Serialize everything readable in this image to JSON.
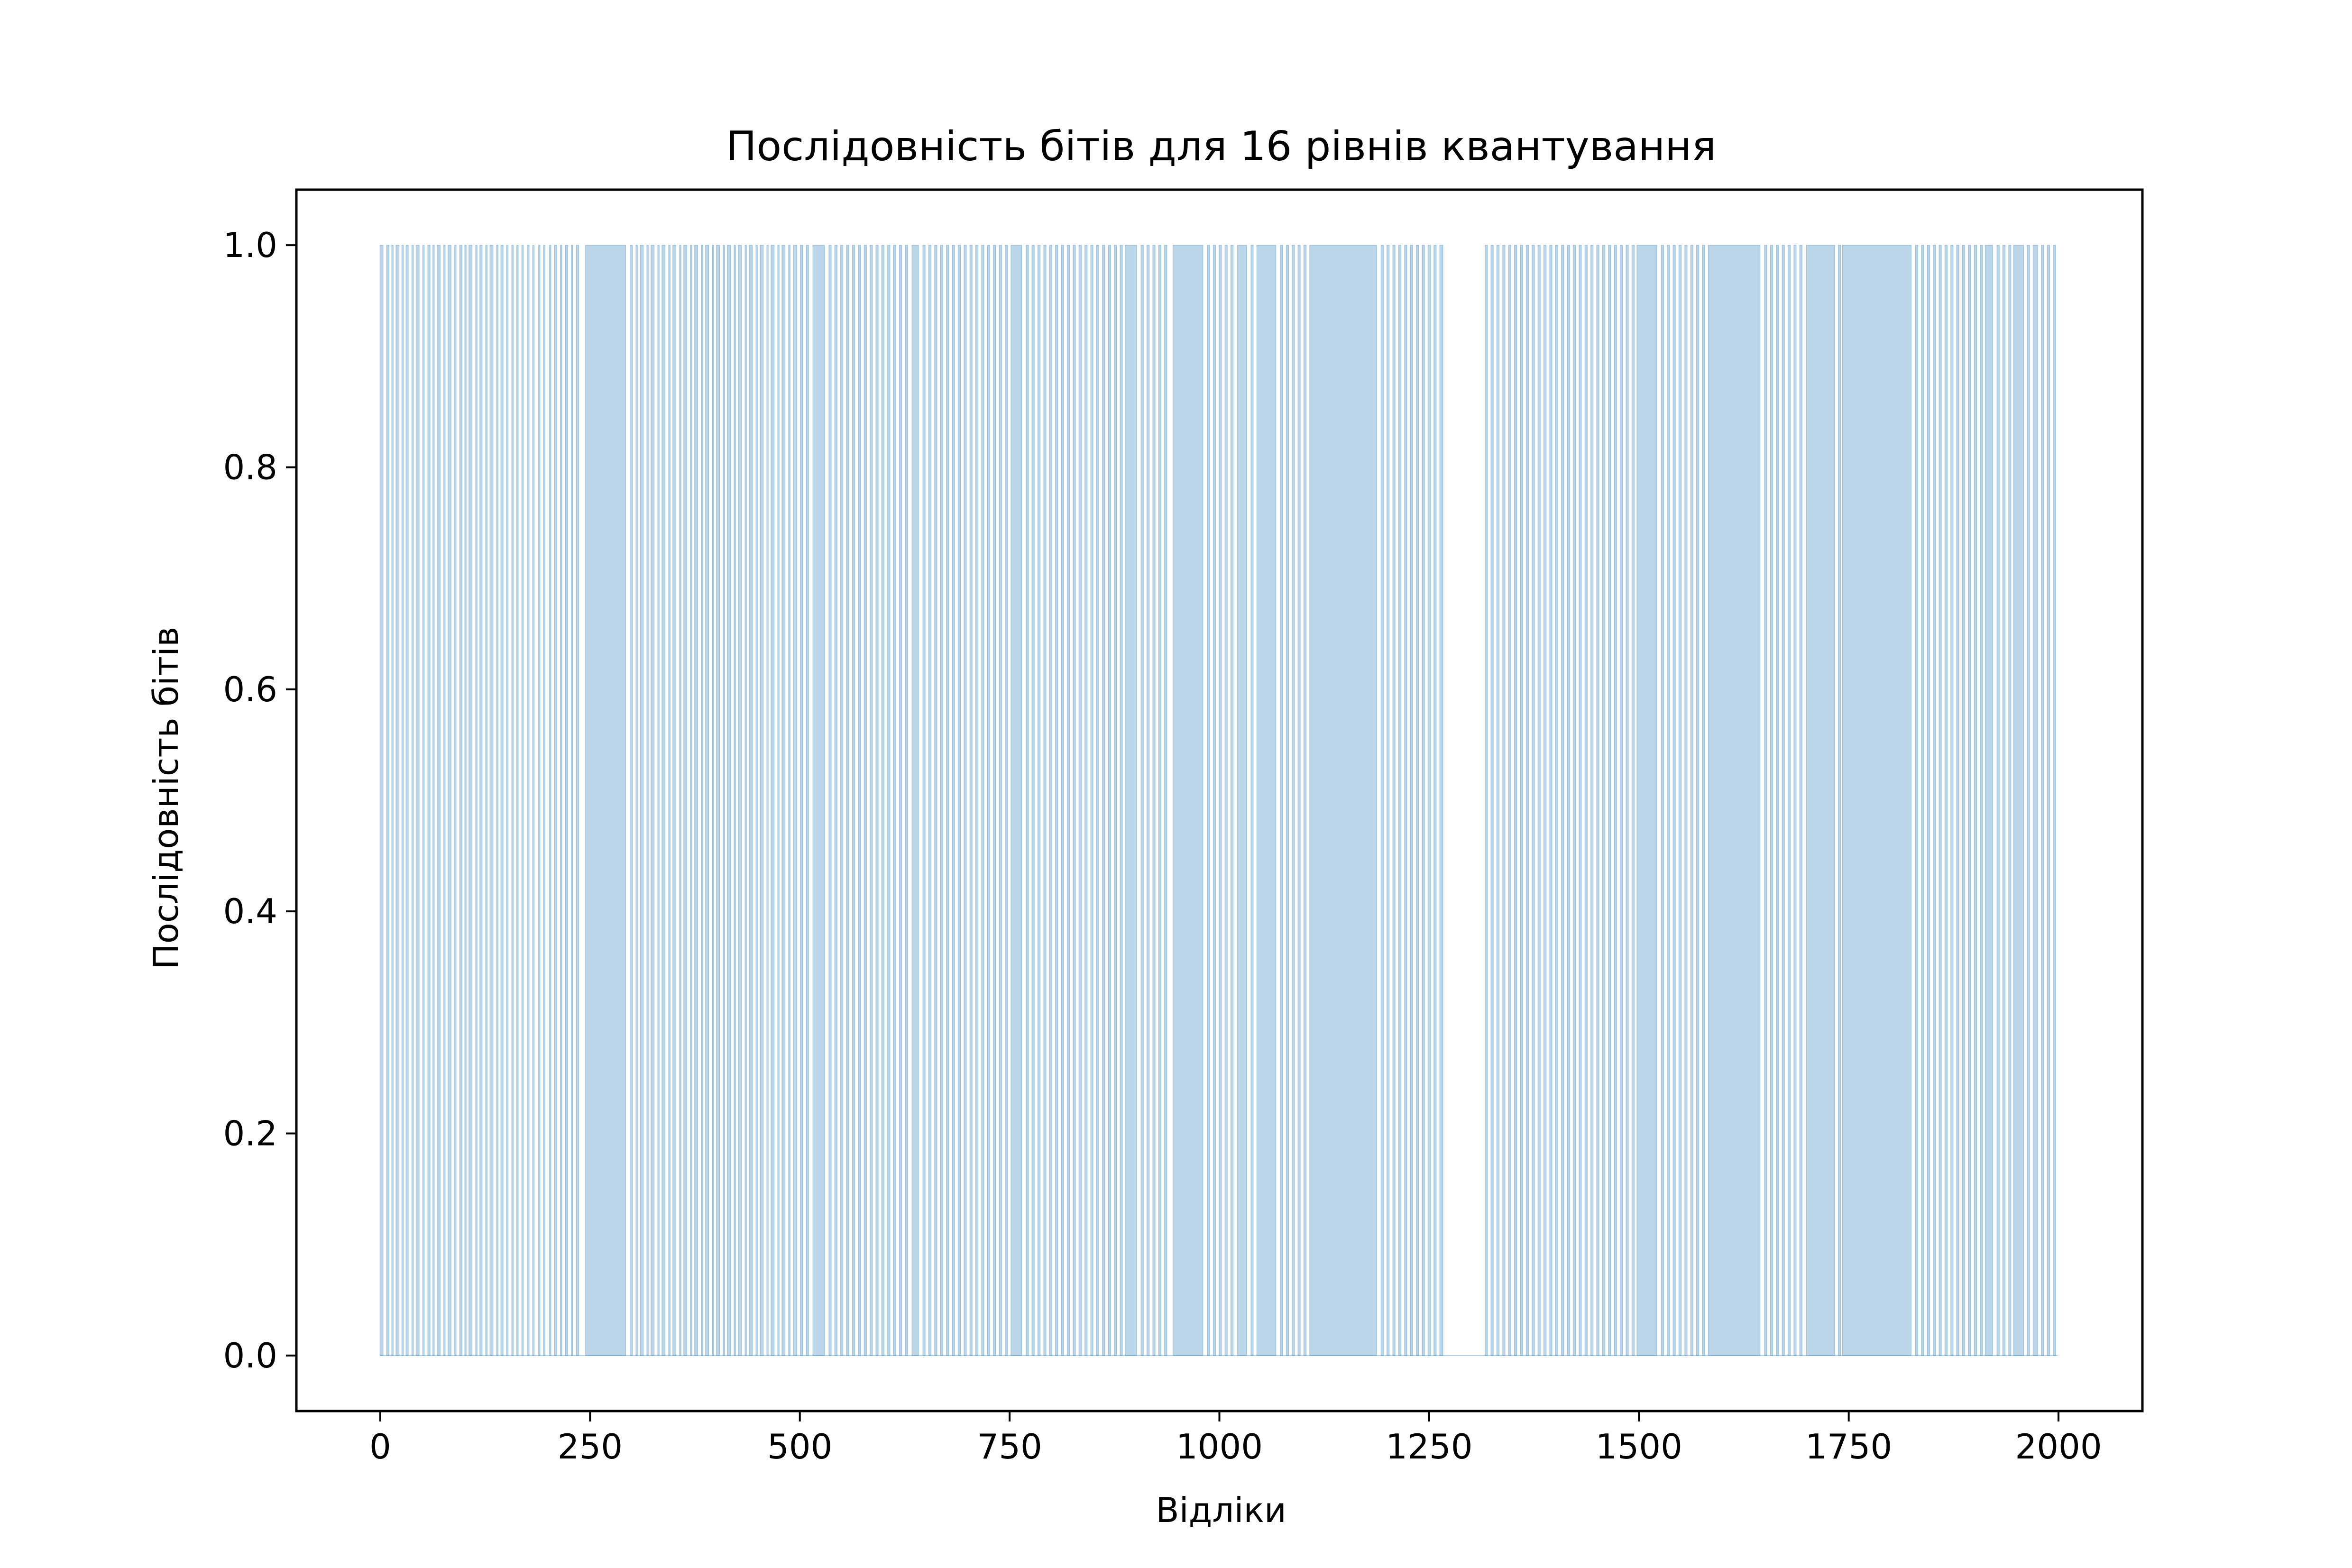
{
  "chart_data": {
    "type": "bar",
    "title": "Послідовність бітів для 16 рівнів квантування",
    "xlabel": "Відліки",
    "ylabel": "Послідовність бітів",
    "xlim": [
      -100,
      2100
    ],
    "ylim": [
      -0.05,
      1.05
    ],
    "xticks": [
      0,
      250,
      500,
      750,
      1000,
      1250,
      1500,
      1750,
      2000
    ],
    "xtick_labels": [
      "0",
      "250",
      "500",
      "750",
      "1000",
      "1250",
      "1500",
      "1750",
      "2000"
    ],
    "yticks": [
      0.0,
      0.2,
      0.4,
      0.6,
      0.8,
      1.0
    ],
    "ytick_labels": [
      "0.0",
      "0.2",
      "0.4",
      "0.6",
      "0.8",
      "1.0"
    ],
    "grid": false,
    "n_samples": 2000,
    "bar_color": "#1f77b4",
    "bar_alpha": 0.3,
    "series": [
      {
        "description": "Bit value per sample (0 or 1); ranges below list runs of consecutive 1-bits [start, end]",
        "one_runs": [
          [
            0,
            3
          ],
          [
            8,
            10
          ],
          [
            14,
            15
          ],
          [
            19,
            22
          ],
          [
            26,
            27
          ],
          [
            31,
            33
          ],
          [
            38,
            39
          ],
          [
            43,
            46
          ],
          [
            51,
            52
          ],
          [
            57,
            59
          ],
          [
            63,
            64
          ],
          [
            68,
            71
          ],
          [
            76,
            77
          ],
          [
            81,
            84
          ],
          [
            89,
            90
          ],
          [
            95,
            97
          ],
          [
            101,
            102
          ],
          [
            106,
            109
          ],
          [
            114,
            115
          ],
          [
            119,
            121
          ],
          [
            126,
            127
          ],
          [
            131,
            134
          ],
          [
            139,
            140
          ],
          [
            144,
            146
          ],
          [
            151,
            152
          ],
          [
            157,
            158
          ],
          [
            163,
            164
          ],
          [
            169,
            170
          ],
          [
            176,
            177
          ],
          [
            182,
            183
          ],
          [
            189,
            190
          ],
          [
            195,
            196
          ],
          [
            202,
            203
          ],
          [
            208,
            210
          ],
          [
            215,
            216
          ],
          [
            221,
            223
          ],
          [
            228,
            229
          ],
          [
            234,
            236
          ],
          [
            245,
            292
          ],
          [
            298,
            300
          ],
          [
            305,
            306
          ],
          [
            310,
            313
          ],
          [
            318,
            319
          ],
          [
            323,
            326
          ],
          [
            331,
            332
          ],
          [
            336,
            339
          ],
          [
            344,
            345
          ],
          [
            349,
            352
          ],
          [
            357,
            358
          ],
          [
            362,
            365
          ],
          [
            370,
            371
          ],
          [
            375,
            378
          ],
          [
            383,
            384
          ],
          [
            388,
            391
          ],
          [
            396,
            397
          ],
          [
            401,
            404
          ],
          [
            409,
            410
          ],
          [
            414,
            417
          ],
          [
            422,
            423
          ],
          [
            427,
            430
          ],
          [
            435,
            436
          ],
          [
            440,
            443
          ],
          [
            448,
            449
          ],
          [
            453,
            456
          ],
          [
            461,
            462
          ],
          [
            466,
            469
          ],
          [
            474,
            475
          ],
          [
            479,
            482
          ],
          [
            487,
            488
          ],
          [
            493,
            496
          ],
          [
            501,
            503
          ],
          [
            508,
            510
          ],
          [
            516,
            529
          ],
          [
            535,
            537
          ],
          [
            542,
            544
          ],
          [
            549,
            551
          ],
          [
            556,
            558
          ],
          [
            563,
            565
          ],
          [
            570,
            572
          ],
          [
            577,
            579
          ],
          [
            584,
            586
          ],
          [
            591,
            593
          ],
          [
            598,
            600
          ],
          [
            605,
            607
          ],
          [
            612,
            614
          ],
          [
            619,
            621
          ],
          [
            626,
            628
          ],
          [
            634,
            641
          ],
          [
            647,
            649
          ],
          [
            654,
            656
          ],
          [
            661,
            663
          ],
          [
            668,
            670
          ],
          [
            675,
            677
          ],
          [
            682,
            684
          ],
          [
            689,
            691
          ],
          [
            696,
            698
          ],
          [
            703,
            705
          ],
          [
            710,
            712
          ],
          [
            717,
            719
          ],
          [
            724,
            726
          ],
          [
            731,
            733
          ],
          [
            738,
            740
          ],
          [
            745,
            747
          ],
          [
            752,
            764
          ],
          [
            770,
            772
          ],
          [
            777,
            779
          ],
          [
            784,
            786
          ],
          [
            791,
            793
          ],
          [
            798,
            800
          ],
          [
            805,
            807
          ],
          [
            812,
            814
          ],
          [
            819,
            821
          ],
          [
            826,
            828
          ],
          [
            833,
            835
          ],
          [
            840,
            842
          ],
          [
            847,
            849
          ],
          [
            854,
            856
          ],
          [
            861,
            863
          ],
          [
            868,
            870
          ],
          [
            875,
            877
          ],
          [
            882,
            884
          ],
          [
            888,
            901
          ],
          [
            907,
            909
          ],
          [
            914,
            916
          ],
          [
            921,
            923
          ],
          [
            928,
            930
          ],
          [
            935,
            937
          ],
          [
            945,
            980
          ],
          [
            986,
            988
          ],
          [
            993,
            995
          ],
          [
            1000,
            1002
          ],
          [
            1007,
            1009
          ],
          [
            1014,
            1016
          ],
          [
            1022,
            1032
          ],
          [
            1038,
            1040
          ],
          [
            1045,
            1067
          ],
          [
            1073,
            1075
          ],
          [
            1080,
            1082
          ],
          [
            1087,
            1089
          ],
          [
            1094,
            1096
          ],
          [
            1101,
            1103
          ],
          [
            1108,
            1187
          ],
          [
            1193,
            1195
          ],
          [
            1200,
            1202
          ],
          [
            1207,
            1209
          ],
          [
            1214,
            1216
          ],
          [
            1221,
            1223
          ],
          [
            1228,
            1230
          ],
          [
            1235,
            1237
          ],
          [
            1242,
            1244
          ],
          [
            1249,
            1251
          ],
          [
            1256,
            1258
          ],
          [
            1263,
            1266
          ],
          [
            1317,
            1319
          ],
          [
            1324,
            1326
          ],
          [
            1331,
            1333
          ],
          [
            1338,
            1340
          ],
          [
            1345,
            1347
          ],
          [
            1352,
            1354
          ],
          [
            1359,
            1361
          ],
          [
            1366,
            1368
          ],
          [
            1373,
            1375
          ],
          [
            1380,
            1382
          ],
          [
            1387,
            1389
          ],
          [
            1394,
            1396
          ],
          [
            1401,
            1403
          ],
          [
            1408,
            1410
          ],
          [
            1415,
            1417
          ],
          [
            1422,
            1424
          ],
          [
            1429,
            1431
          ],
          [
            1436,
            1438
          ],
          [
            1443,
            1445
          ],
          [
            1450,
            1452
          ],
          [
            1457,
            1459
          ],
          [
            1464,
            1466
          ],
          [
            1471,
            1473
          ],
          [
            1478,
            1480
          ],
          [
            1485,
            1487
          ],
          [
            1492,
            1494
          ],
          [
            1498,
            1521
          ],
          [
            1527,
            1529
          ],
          [
            1534,
            1536
          ],
          [
            1541,
            1543
          ],
          [
            1548,
            1550
          ],
          [
            1555,
            1557
          ],
          [
            1562,
            1564
          ],
          [
            1569,
            1571
          ],
          [
            1576,
            1578
          ],
          [
            1583,
            1644
          ],
          [
            1650,
            1652
          ],
          [
            1657,
            1659
          ],
          [
            1664,
            1666
          ],
          [
            1671,
            1673
          ],
          [
            1678,
            1680
          ],
          [
            1685,
            1687
          ],
          [
            1692,
            1694
          ],
          [
            1700,
            1733
          ],
          [
            1738,
            1740
          ],
          [
            1743,
            1824
          ],
          [
            1830,
            1832
          ],
          [
            1837,
            1839
          ],
          [
            1844,
            1846
          ],
          [
            1851,
            1853
          ],
          [
            1858,
            1860
          ],
          [
            1865,
            1867
          ],
          [
            1872,
            1874
          ],
          [
            1879,
            1881
          ],
          [
            1886,
            1888
          ],
          [
            1893,
            1895
          ],
          [
            1900,
            1902
          ],
          [
            1907,
            1909
          ],
          [
            1913,
            1921
          ],
          [
            1927,
            1929
          ],
          [
            1934,
            1936
          ],
          [
            1941,
            1943
          ],
          [
            1947,
            1958
          ],
          [
            1963,
            1965
          ],
          [
            1970,
            1975
          ],
          [
            1980,
            1982
          ],
          [
            1987,
            1989
          ],
          [
            1994,
            1996
          ]
        ]
      }
    ]
  }
}
